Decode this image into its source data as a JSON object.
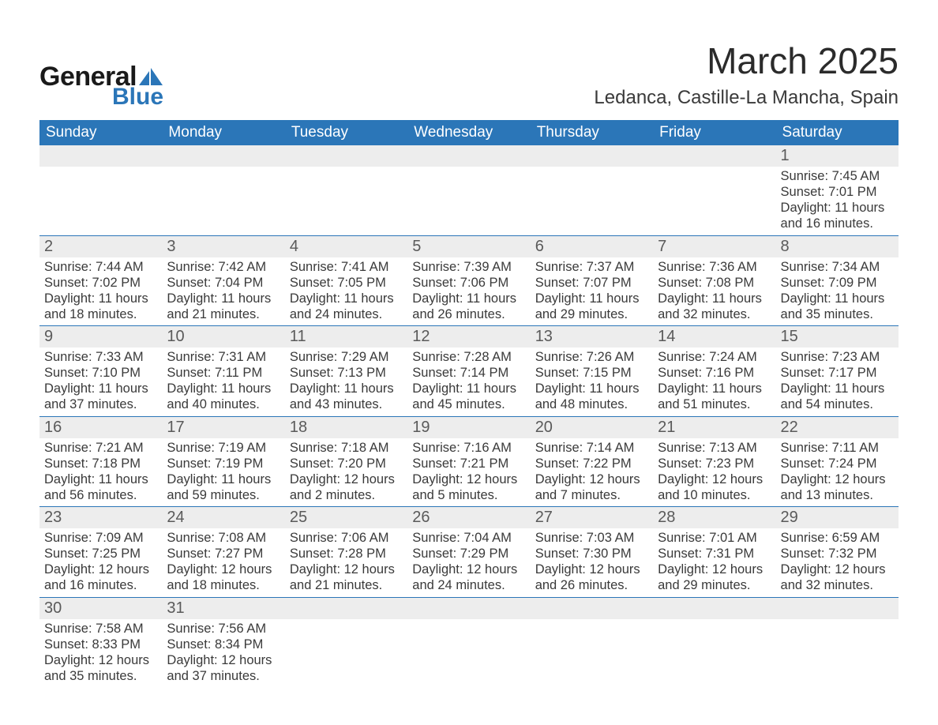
{
  "branding": {
    "logo_word1": "General",
    "logo_word2": "Blue",
    "logo_color_primary": "#1a1a1a",
    "logo_color_accent": "#2b76b8"
  },
  "header": {
    "month_title": "March 2025",
    "location": "Ledanca, Castille-La Mancha, Spain"
  },
  "calendar": {
    "header_bg": "#2b76b8",
    "header_fg": "#ffffff",
    "daynum_bg": "#ededed",
    "rule_color": "#2b76b8",
    "day_names": [
      "Sunday",
      "Monday",
      "Tuesday",
      "Wednesday",
      "Thursday",
      "Friday",
      "Saturday"
    ],
    "weeks": [
      {
        "nums": [
          "",
          "",
          "",
          "",
          "",
          "",
          "1"
        ],
        "cells": [
          null,
          null,
          null,
          null,
          null,
          null,
          {
            "sunrise": "Sunrise: 7:45 AM",
            "sunset": "Sunset: 7:01 PM",
            "day1": "Daylight: 11 hours",
            "day2": "and 16 minutes."
          }
        ]
      },
      {
        "nums": [
          "2",
          "3",
          "4",
          "5",
          "6",
          "7",
          "8"
        ],
        "cells": [
          {
            "sunrise": "Sunrise: 7:44 AM",
            "sunset": "Sunset: 7:02 PM",
            "day1": "Daylight: 11 hours",
            "day2": "and 18 minutes."
          },
          {
            "sunrise": "Sunrise: 7:42 AM",
            "sunset": "Sunset: 7:04 PM",
            "day1": "Daylight: 11 hours",
            "day2": "and 21 minutes."
          },
          {
            "sunrise": "Sunrise: 7:41 AM",
            "sunset": "Sunset: 7:05 PM",
            "day1": "Daylight: 11 hours",
            "day2": "and 24 minutes."
          },
          {
            "sunrise": "Sunrise: 7:39 AM",
            "sunset": "Sunset: 7:06 PM",
            "day1": "Daylight: 11 hours",
            "day2": "and 26 minutes."
          },
          {
            "sunrise": "Sunrise: 7:37 AM",
            "sunset": "Sunset: 7:07 PM",
            "day1": "Daylight: 11 hours",
            "day2": "and 29 minutes."
          },
          {
            "sunrise": "Sunrise: 7:36 AM",
            "sunset": "Sunset: 7:08 PM",
            "day1": "Daylight: 11 hours",
            "day2": "and 32 minutes."
          },
          {
            "sunrise": "Sunrise: 7:34 AM",
            "sunset": "Sunset: 7:09 PM",
            "day1": "Daylight: 11 hours",
            "day2": "and 35 minutes."
          }
        ]
      },
      {
        "nums": [
          "9",
          "10",
          "11",
          "12",
          "13",
          "14",
          "15"
        ],
        "cells": [
          {
            "sunrise": "Sunrise: 7:33 AM",
            "sunset": "Sunset: 7:10 PM",
            "day1": "Daylight: 11 hours",
            "day2": "and 37 minutes."
          },
          {
            "sunrise": "Sunrise: 7:31 AM",
            "sunset": "Sunset: 7:11 PM",
            "day1": "Daylight: 11 hours",
            "day2": "and 40 minutes."
          },
          {
            "sunrise": "Sunrise: 7:29 AM",
            "sunset": "Sunset: 7:13 PM",
            "day1": "Daylight: 11 hours",
            "day2": "and 43 minutes."
          },
          {
            "sunrise": "Sunrise: 7:28 AM",
            "sunset": "Sunset: 7:14 PM",
            "day1": "Daylight: 11 hours",
            "day2": "and 45 minutes."
          },
          {
            "sunrise": "Sunrise: 7:26 AM",
            "sunset": "Sunset: 7:15 PM",
            "day1": "Daylight: 11 hours",
            "day2": "and 48 minutes."
          },
          {
            "sunrise": "Sunrise: 7:24 AM",
            "sunset": "Sunset: 7:16 PM",
            "day1": "Daylight: 11 hours",
            "day2": "and 51 minutes."
          },
          {
            "sunrise": "Sunrise: 7:23 AM",
            "sunset": "Sunset: 7:17 PM",
            "day1": "Daylight: 11 hours",
            "day2": "and 54 minutes."
          }
        ]
      },
      {
        "nums": [
          "16",
          "17",
          "18",
          "19",
          "20",
          "21",
          "22"
        ],
        "cells": [
          {
            "sunrise": "Sunrise: 7:21 AM",
            "sunset": "Sunset: 7:18 PM",
            "day1": "Daylight: 11 hours",
            "day2": "and 56 minutes."
          },
          {
            "sunrise": "Sunrise: 7:19 AM",
            "sunset": "Sunset: 7:19 PM",
            "day1": "Daylight: 11 hours",
            "day2": "and 59 minutes."
          },
          {
            "sunrise": "Sunrise: 7:18 AM",
            "sunset": "Sunset: 7:20 PM",
            "day1": "Daylight: 12 hours",
            "day2": "and 2 minutes."
          },
          {
            "sunrise": "Sunrise: 7:16 AM",
            "sunset": "Sunset: 7:21 PM",
            "day1": "Daylight: 12 hours",
            "day2": "and 5 minutes."
          },
          {
            "sunrise": "Sunrise: 7:14 AM",
            "sunset": "Sunset: 7:22 PM",
            "day1": "Daylight: 12 hours",
            "day2": "and 7 minutes."
          },
          {
            "sunrise": "Sunrise: 7:13 AM",
            "sunset": "Sunset: 7:23 PM",
            "day1": "Daylight: 12 hours",
            "day2": "and 10 minutes."
          },
          {
            "sunrise": "Sunrise: 7:11 AM",
            "sunset": "Sunset: 7:24 PM",
            "day1": "Daylight: 12 hours",
            "day2": "and 13 minutes."
          }
        ]
      },
      {
        "nums": [
          "23",
          "24",
          "25",
          "26",
          "27",
          "28",
          "29"
        ],
        "cells": [
          {
            "sunrise": "Sunrise: 7:09 AM",
            "sunset": "Sunset: 7:25 PM",
            "day1": "Daylight: 12 hours",
            "day2": "and 16 minutes."
          },
          {
            "sunrise": "Sunrise: 7:08 AM",
            "sunset": "Sunset: 7:27 PM",
            "day1": "Daylight: 12 hours",
            "day2": "and 18 minutes."
          },
          {
            "sunrise": "Sunrise: 7:06 AM",
            "sunset": "Sunset: 7:28 PM",
            "day1": "Daylight: 12 hours",
            "day2": "and 21 minutes."
          },
          {
            "sunrise": "Sunrise: 7:04 AM",
            "sunset": "Sunset: 7:29 PM",
            "day1": "Daylight: 12 hours",
            "day2": "and 24 minutes."
          },
          {
            "sunrise": "Sunrise: 7:03 AM",
            "sunset": "Sunset: 7:30 PM",
            "day1": "Daylight: 12 hours",
            "day2": "and 26 minutes."
          },
          {
            "sunrise": "Sunrise: 7:01 AM",
            "sunset": "Sunset: 7:31 PM",
            "day1": "Daylight: 12 hours",
            "day2": "and 29 minutes."
          },
          {
            "sunrise": "Sunrise: 6:59 AM",
            "sunset": "Sunset: 7:32 PM",
            "day1": "Daylight: 12 hours",
            "day2": "and 32 minutes."
          }
        ]
      },
      {
        "nums": [
          "30",
          "31",
          "",
          "",
          "",
          "",
          ""
        ],
        "cells": [
          {
            "sunrise": "Sunrise: 7:58 AM",
            "sunset": "Sunset: 8:33 PM",
            "day1": "Daylight: 12 hours",
            "day2": "and 35 minutes."
          },
          {
            "sunrise": "Sunrise: 7:56 AM",
            "sunset": "Sunset: 8:34 PM",
            "day1": "Daylight: 12 hours",
            "day2": "and 37 minutes."
          },
          null,
          null,
          null,
          null,
          null
        ]
      }
    ]
  }
}
